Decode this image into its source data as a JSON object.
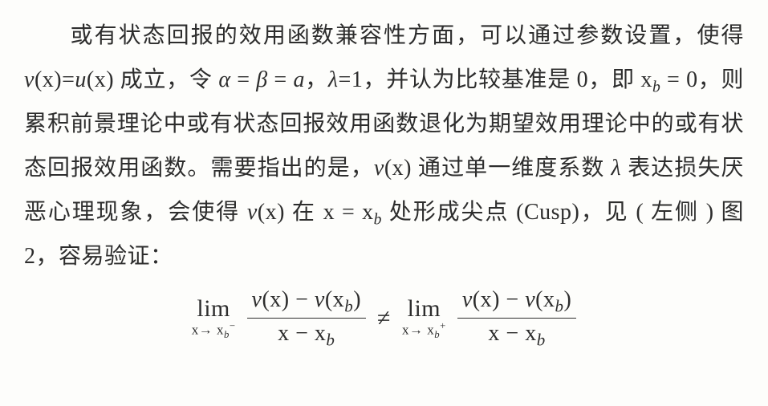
{
  "paragraph": {
    "segments": {
      "s1": "或有状态回报的效用函数兼容性方面，可以通过参数设置，使得 ",
      "s2_vx": "v",
      "s2_paren_open": "(x)=",
      "s2_ux": "u",
      "s2_close": "(x) 成立，令 ",
      "s3_alpha": "α",
      "s3_eq1": " = ",
      "s3_beta": "β",
      "s3_eq2": " = ",
      "s3_a": "a",
      "s3_comma": "，",
      "s4_lambda": "λ",
      "s4_val": "=1，并认为比较基准是 0，即 x",
      "s4_sub_b": "b",
      "s4_tail": " = 0，则累积前景理论中或有状态回报效用函数退化为期望效用理论中的或有状态回报效用函数。需要指出的是，",
      "s5_v": "v",
      "s5_after_v": "(x) 通过单一维度系数 ",
      "s5_lambda": "λ",
      "s5_mid": " 表达损失厌恶心理现象，会使得 ",
      "s6_v": "v",
      "s6_after": "(x) 在 x = x",
      "s6_sub_b": "b",
      "s6_cusp": " 处形成尖点 (Cusp)，见 ( 左侧 ) 图 2，容易验证：",
      "fig_num": "2"
    }
  },
  "equation": {
    "lim_word": "lim",
    "limL_under_pre": "x→ x",
    "limL_sub": "b",
    "limL_sup": "−",
    "limR_under_pre": "x→ x",
    "limR_sub": "b",
    "limR_sup": "+",
    "num_v": "v",
    "num_open": "(x) − ",
    "num_v2": "v",
    "num_xb_open": "(x",
    "num_xb_sub": "b",
    "num_close": ")",
    "den_pre": "x − x",
    "den_sub": "b",
    "neq": "≠"
  }
}
